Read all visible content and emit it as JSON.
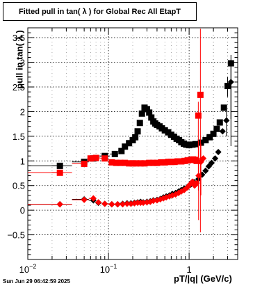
{
  "title": "Fitted pull in tan( λ ) for Global Rec All EtapT",
  "footer": "Sun Jun 29 06:42:59 2025",
  "chart_data": {
    "type": "scatter",
    "xlabel": "pT/|q| (GeV/c)",
    "ylabel": "pull in tan( λ )",
    "xscale": "log",
    "xlim": [
      0.01,
      4.0
    ],
    "ylim": [
      -1.0,
      3.7
    ],
    "xticks": [
      {
        "v": 0.01,
        "base": "10",
        "exp": "−2"
      },
      {
        "v": 0.1,
        "base": "10",
        "exp": "−1"
      },
      {
        "v": 1,
        "base": "1",
        "exp": ""
      }
    ],
    "yticks": [
      "−0.5",
      "0",
      "0.5",
      "1",
      "1.5",
      "2",
      "2.5",
      "3",
      "3.5"
    ],
    "grid": true,
    "series": [
      {
        "color": "#000000",
        "marker": "square",
        "points": [
          [
            0.025,
            0.9
          ],
          [
            0.05,
            0.98
          ],
          [
            0.065,
            1.05
          ],
          [
            0.09,
            1.1
          ],
          [
            0.12,
            1.14
          ],
          [
            0.145,
            1.2
          ],
          [
            0.16,
            1.29
          ],
          [
            0.18,
            1.36
          ],
          [
            0.2,
            1.42
          ],
          [
            0.215,
            1.48
          ],
          [
            0.23,
            1.6
          ],
          [
            0.245,
            1.77
          ],
          [
            0.26,
            1.96
          ],
          [
            0.28,
            2.08
          ],
          [
            0.3,
            2.05
          ],
          [
            0.32,
            1.98
          ],
          [
            0.34,
            1.88
          ],
          [
            0.36,
            1.8
          ],
          [
            0.38,
            1.76
          ],
          [
            0.4,
            1.73
          ],
          [
            0.43,
            1.7
          ],
          [
            0.46,
            1.66
          ],
          [
            0.5,
            1.62
          ],
          [
            0.55,
            1.58
          ],
          [
            0.6,
            1.53
          ],
          [
            0.65,
            1.49
          ],
          [
            0.7,
            1.45
          ],
          [
            0.75,
            1.42
          ],
          [
            0.8,
            1.38
          ],
          [
            0.86,
            1.35
          ],
          [
            0.92,
            1.33
          ],
          [
            1.0,
            1.32
          ],
          [
            1.1,
            1.33
          ],
          [
            1.2,
            1.34
          ],
          [
            1.4,
            1.37
          ],
          [
            1.6,
            1.42
          ],
          [
            1.8,
            1.48
          ],
          [
            2.0,
            1.55
          ],
          [
            2.2,
            1.65
          ],
          [
            2.4,
            1.78
          ],
          [
            2.7,
            2.08
          ],
          [
            3.0,
            2.52
          ],
          [
            3.3,
            2.98
          ]
        ],
        "err_top": [
          [
            3.3,
            3.15
          ],
          [
            3.0,
            2.7
          ]
        ],
        "err_bot": [
          [
            3.3,
            1.3
          ],
          [
            3.0,
            2.3
          ]
        ]
      },
      {
        "color": "#000000",
        "marker": "diamond",
        "points": [
          [
            0.025,
            0.12
          ],
          [
            0.05,
            0.22
          ],
          [
            0.065,
            0.2
          ],
          [
            0.075,
            0.15
          ],
          [
            0.09,
            0.13
          ],
          [
            0.11,
            0.12
          ],
          [
            0.13,
            0.12
          ],
          [
            0.15,
            0.13
          ],
          [
            0.17,
            0.14
          ],
          [
            0.19,
            0.14
          ],
          [
            0.21,
            0.15
          ],
          [
            0.23,
            0.16
          ],
          [
            0.25,
            0.17
          ],
          [
            0.27,
            0.16
          ],
          [
            0.3,
            0.17
          ],
          [
            0.33,
            0.18
          ],
          [
            0.36,
            0.2
          ],
          [
            0.4,
            0.21
          ],
          [
            0.44,
            0.23
          ],
          [
            0.48,
            0.26
          ],
          [
            0.52,
            0.28
          ],
          [
            0.57,
            0.3
          ],
          [
            0.62,
            0.33
          ],
          [
            0.68,
            0.35
          ],
          [
            0.74,
            0.38
          ],
          [
            0.8,
            0.41
          ],
          [
            0.87,
            0.44
          ],
          [
            0.95,
            0.47
          ],
          [
            1.05,
            0.52
          ],
          [
            1.15,
            0.57
          ],
          [
            1.3,
            0.63
          ],
          [
            1.45,
            0.72
          ],
          [
            1.6,
            0.8
          ],
          [
            1.75,
            0.89
          ],
          [
            1.9,
            0.96
          ],
          [
            2.1,
            1.05
          ],
          [
            2.3,
            1.18
          ],
          [
            2.6,
            1.6
          ],
          [
            2.9,
            1.82
          ],
          [
            3.3,
            2.6
          ]
        ],
        "err_top": [
          [
            3.3,
            3.05
          ],
          [
            2.9,
            2.1
          ]
        ],
        "err_bot": [
          [
            3.3,
            1.85
          ],
          [
            2.9,
            1.5
          ]
        ]
      },
      {
        "color": "#ff0000",
        "marker": "square",
        "points": [
          [
            0.025,
            0.76
          ],
          [
            0.05,
            0.94
          ],
          [
            0.06,
            1.05
          ],
          [
            0.07,
            1.06
          ],
          [
            0.09,
            1.05
          ],
          [
            0.11,
            0.97
          ],
          [
            0.125,
            0.96
          ],
          [
            0.14,
            0.96
          ],
          [
            0.16,
            0.96
          ],
          [
            0.18,
            0.95
          ],
          [
            0.2,
            0.95
          ],
          [
            0.22,
            0.95
          ],
          [
            0.25,
            0.95
          ],
          [
            0.28,
            0.95
          ],
          [
            0.32,
            0.96
          ],
          [
            0.36,
            0.96
          ],
          [
            0.4,
            0.96
          ],
          [
            0.45,
            0.97
          ],
          [
            0.5,
            0.97
          ],
          [
            0.55,
            0.98
          ],
          [
            0.6,
            0.98
          ],
          [
            0.66,
            0.98
          ],
          [
            0.72,
            0.99
          ],
          [
            0.8,
            0.99
          ],
          [
            0.88,
            1.0
          ],
          [
            0.96,
            1.01
          ],
          [
            1.05,
            1.02
          ],
          [
            1.12,
            1.03
          ],
          [
            1.18,
            1.02
          ],
          [
            1.24,
            1.0
          ],
          [
            1.3,
            1.92
          ],
          [
            1.38,
            2.34
          ]
        ],
        "err_top": [
          [
            1.38,
            3.68
          ],
          [
            1.3,
            2.2
          ]
        ],
        "err_bot": [
          [
            1.38,
            -0.45
          ],
          [
            1.3,
            0.4
          ]
        ]
      },
      {
        "color": "#ff0000",
        "marker": "diamond",
        "points": [
          [
            0.025,
            0.12
          ],
          [
            0.05,
            0.21
          ],
          [
            0.065,
            0.24
          ],
          [
            0.075,
            0.16
          ],
          [
            0.09,
            0.13
          ],
          [
            0.11,
            0.12
          ],
          [
            0.13,
            0.12
          ],
          [
            0.15,
            0.12
          ],
          [
            0.17,
            0.13
          ],
          [
            0.19,
            0.13
          ],
          [
            0.21,
            0.14
          ],
          [
            0.23,
            0.15
          ],
          [
            0.25,
            0.15
          ],
          [
            0.27,
            0.15
          ],
          [
            0.3,
            0.16
          ],
          [
            0.33,
            0.17
          ],
          [
            0.36,
            0.19
          ],
          [
            0.4,
            0.2
          ],
          [
            0.44,
            0.22
          ],
          [
            0.48,
            0.24
          ],
          [
            0.52,
            0.26
          ],
          [
            0.57,
            0.28
          ],
          [
            0.62,
            0.3
          ],
          [
            0.68,
            0.32
          ],
          [
            0.74,
            0.35
          ],
          [
            0.8,
            0.38
          ],
          [
            0.87,
            0.41
          ],
          [
            0.95,
            0.46
          ],
          [
            1.02,
            0.52
          ],
          [
            1.1,
            0.58
          ],
          [
            1.17,
            0.5
          ],
          [
            1.24,
            0.55
          ],
          [
            1.31,
            0.7
          ],
          [
            1.4,
            0.98
          ],
          [
            1.5,
            1.05
          ]
        ],
        "err_top": [
          [
            1.31,
            1.4
          ],
          [
            1.4,
            1.35
          ]
        ],
        "err_bot": [
          [
            1.31,
            -0.2
          ],
          [
            1.4,
            0.3
          ]
        ]
      }
    ]
  }
}
